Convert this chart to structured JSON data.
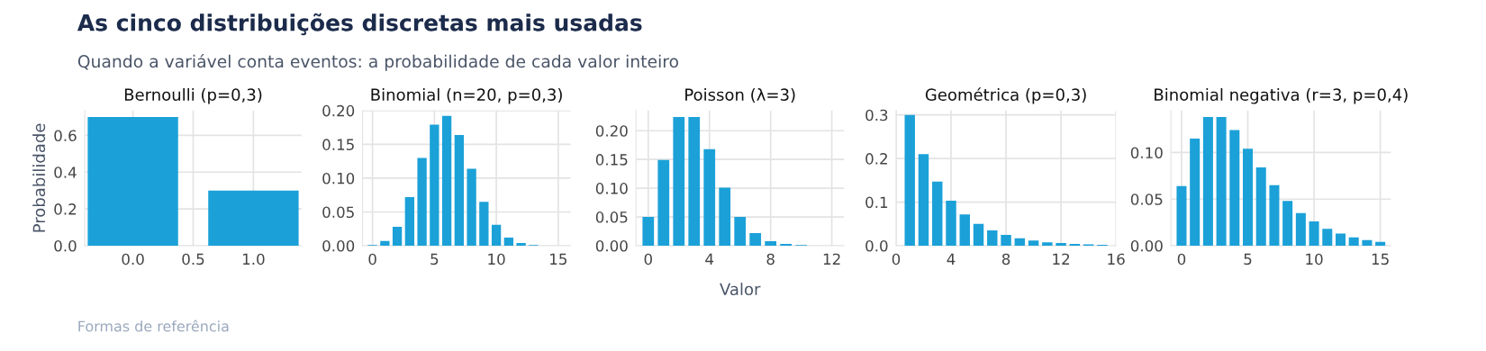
{
  "chart_data": [
    {
      "type": "other",
      "title": "As cinco distribuições discretas mais usadas",
      "subtitle": "Quando a variável conta eventos: a probabilidade de cada valor inteiro",
      "annotations": [
        "Formas de referência"
      ]
    },
    {
      "type": "bar",
      "title": "Bernoulli (p=0,3)",
      "x": [
        0,
        1
      ],
      "values": [
        0.7,
        0.3
      ],
      "color": "#1ba1d8",
      "xlim": [
        -0.4,
        1.4
      ],
      "xticks": [
        {
          "value": 0,
          "label": "0.0"
        },
        {
          "value": 0.5,
          "label": "0.5"
        },
        {
          "value": 1,
          "label": "1.0"
        }
      ],
      "ylim": [
        0,
        0.735
      ],
      "yticks": [
        {
          "value": 0,
          "label": "0.0"
        },
        {
          "value": 0.2,
          "label": "0.2"
        },
        {
          "value": 0.4,
          "label": "0.4"
        },
        {
          "value": 0.6,
          "label": "0.6"
        }
      ],
      "grid": true,
      "ylabel": "Probabilidade"
    },
    {
      "type": "bar",
      "title": "Binomial (n=20, p=0,3)",
      "x": [
        0,
        1,
        2,
        3,
        4,
        5,
        6,
        7,
        8,
        9,
        10,
        11,
        12,
        13,
        14,
        15
      ],
      "values": [
        0.001,
        0.007,
        0.028,
        0.072,
        0.13,
        0.179,
        0.192,
        0.164,
        0.114,
        0.065,
        0.031,
        0.012,
        0.004,
        0.001,
        0.0,
        0.0
      ],
      "color": "#1ba1d8",
      "xlim": [
        -0.8,
        16
      ],
      "xticks": [
        0,
        5,
        10,
        15
      ],
      "ylim": [
        0,
        0.2
      ],
      "yticks": [
        {
          "value": 0,
          "label": "0.00"
        },
        {
          "value": 0.05,
          "label": "0.05"
        },
        {
          "value": 0.1,
          "label": "0.10"
        },
        {
          "value": 0.15,
          "label": "0.15"
        },
        {
          "value": 0.2,
          "label": "0.20"
        }
      ],
      "grid": true
    },
    {
      "type": "bar",
      "title": "Poisson (λ=3)",
      "x": [
        0,
        1,
        2,
        3,
        4,
        5,
        6,
        7,
        8,
        9,
        10,
        11,
        12
      ],
      "values": [
        0.05,
        0.149,
        0.224,
        0.224,
        0.168,
        0.101,
        0.05,
        0.022,
        0.008,
        0.003,
        0.001,
        0.0,
        0.0
      ],
      "color": "#1ba1d8",
      "xlim": [
        -0.8,
        12.8
      ],
      "xticks": [
        0,
        4,
        8,
        12
      ],
      "ylim": [
        0,
        0.235
      ],
      "yticks": [
        {
          "value": 0,
          "label": "0.00"
        },
        {
          "value": 0.05,
          "label": "0.05"
        },
        {
          "value": 0.1,
          "label": "0.10"
        },
        {
          "value": 0.15,
          "label": "0.15"
        },
        {
          "value": 0.2,
          "label": "0.20"
        }
      ],
      "grid": true,
      "xlabel": "Valor"
    },
    {
      "type": "bar",
      "title": "Geométrica (p=0,3)",
      "x": [
        1,
        2,
        3,
        4,
        5,
        6,
        7,
        8,
        9,
        10,
        11,
        12,
        13,
        14,
        15
      ],
      "values": [
        0.3,
        0.21,
        0.147,
        0.103,
        0.072,
        0.05,
        0.035,
        0.025,
        0.017,
        0.012,
        0.008,
        0.006,
        0.004,
        0.003,
        0.002
      ],
      "color": "#1ba1d8",
      "xlim": [
        0,
        16
      ],
      "xticks": [
        0,
        4,
        8,
        12,
        16
      ],
      "ylim": [
        0,
        0.31
      ],
      "yticks": [
        {
          "value": 0,
          "label": "0.0"
        },
        {
          "value": 0.1,
          "label": "0.1"
        },
        {
          "value": 0.2,
          "label": "0.2"
        },
        {
          "value": 0.3,
          "label": "0.3"
        }
      ],
      "grid": true
    },
    {
      "type": "bar",
      "title": "Binomial negativa (r=3, p=0,4)",
      "x": [
        0,
        1,
        2,
        3,
        4,
        5,
        6,
        7,
        8,
        9,
        10,
        11,
        12,
        13,
        14,
        15
      ],
      "values": [
        0.064,
        0.115,
        0.138,
        0.138,
        0.124,
        0.104,
        0.084,
        0.065,
        0.048,
        0.035,
        0.026,
        0.018,
        0.013,
        0.009,
        0.006,
        0.004
      ],
      "color": "#1ba1d8",
      "xlim": [
        -0.8,
        15.8
      ],
      "xticks": [
        0,
        5,
        10,
        15
      ],
      "ylim": [
        0,
        0.145
      ],
      "yticks": [
        {
          "value": 0,
          "label": "0.00"
        },
        {
          "value": 0.05,
          "label": "0.05"
        },
        {
          "value": 0.1,
          "label": "0.10"
        }
      ],
      "grid": true
    }
  ]
}
